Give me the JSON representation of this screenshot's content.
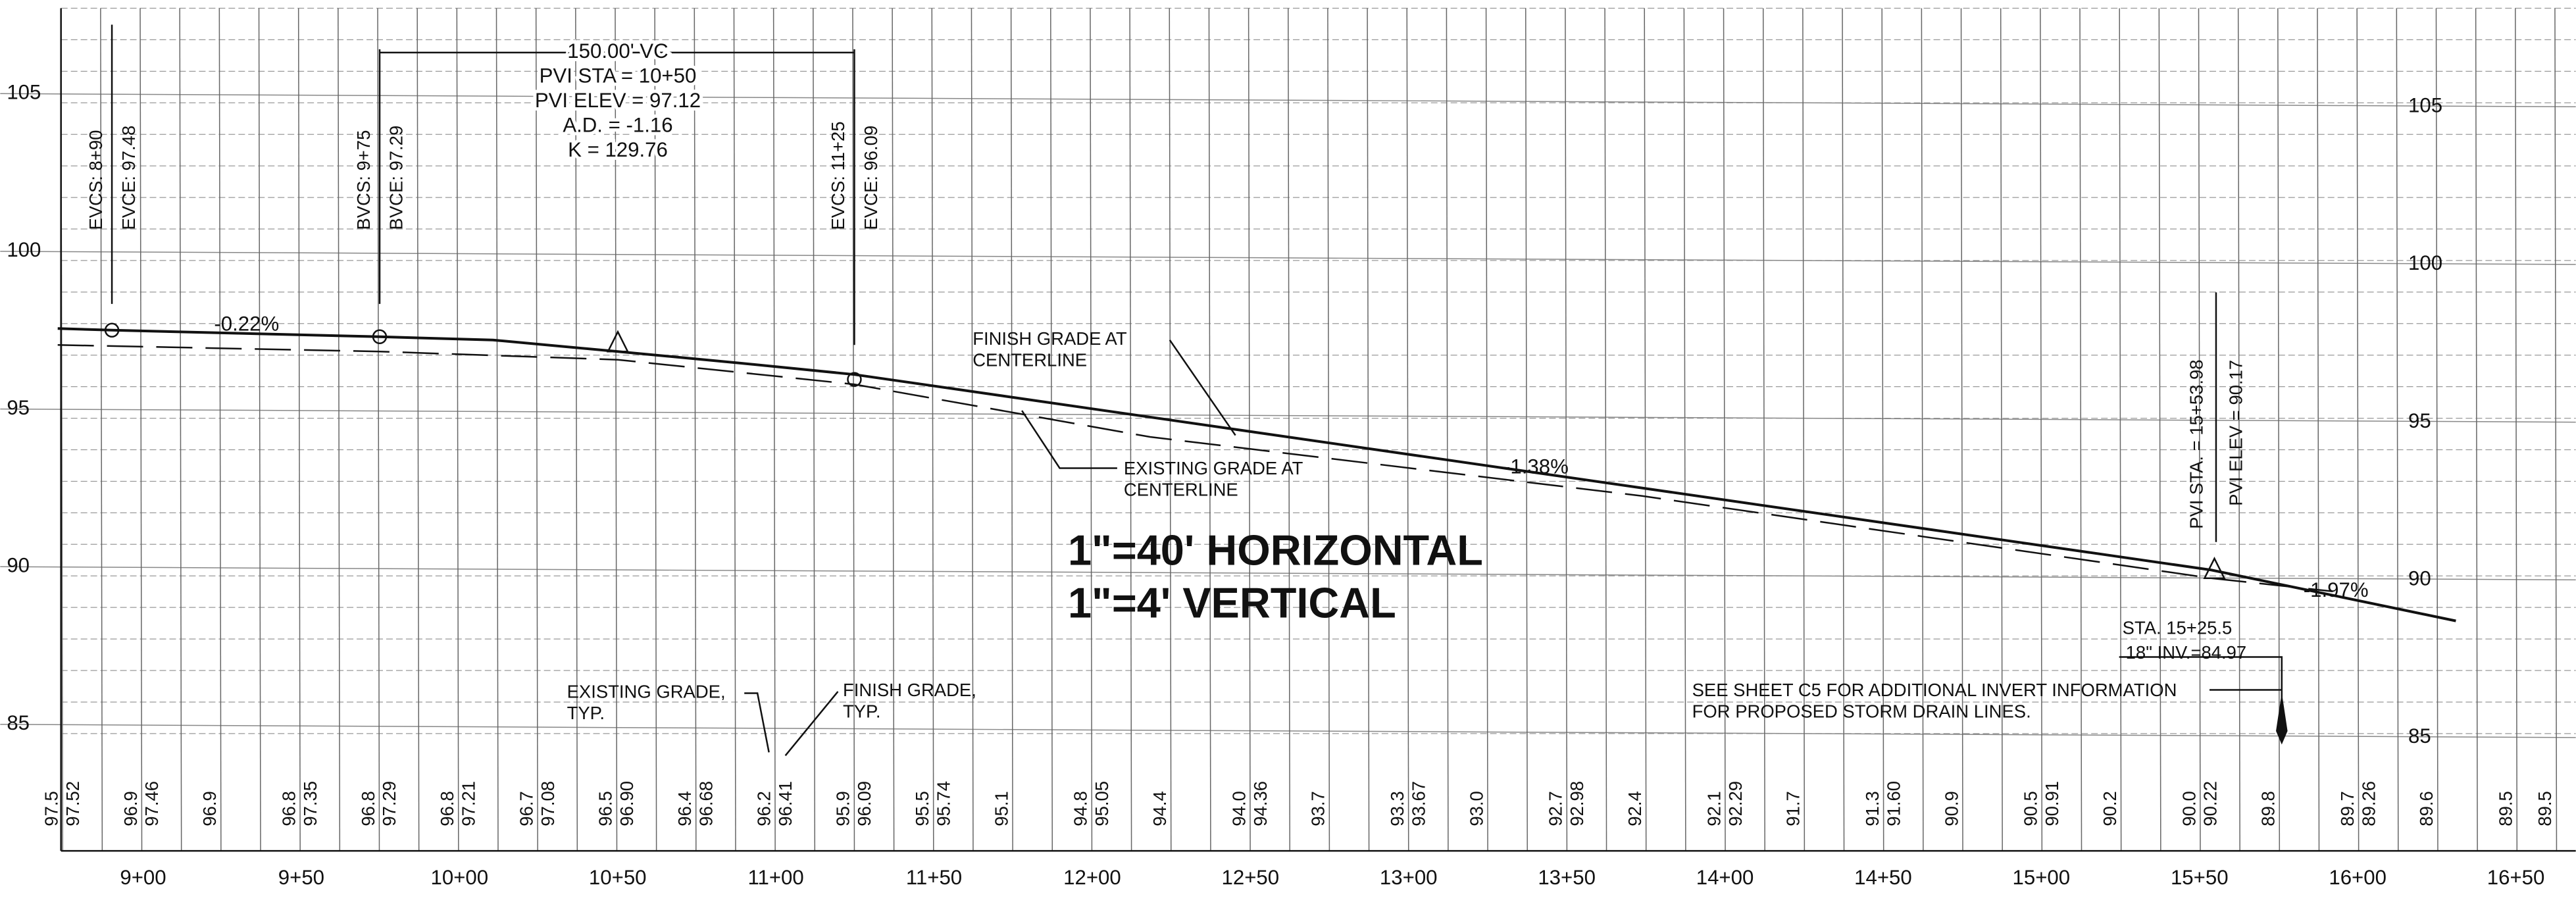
{
  "left_axis": [
    "105",
    "100",
    "95",
    "90",
    "85"
  ],
  "right_axis": [
    "105",
    "100",
    "95",
    "90",
    "85"
  ],
  "stations": [
    "9+00",
    "9+50",
    "10+00",
    "10+50",
    "11+00",
    "11+50",
    "12+00",
    "12+50",
    "13+00",
    "13+50",
    "14+00",
    "14+50",
    "15+00",
    "15+50",
    "16+00",
    "16+50"
  ],
  "elevations": [
    [
      "97.5",
      "97.52"
    ],
    [
      "96.9",
      "97.46"
    ],
    [
      "96.9"
    ],
    [
      "96.8",
      "97.35"
    ],
    [
      "96.8",
      "97.29"
    ],
    [
      "96.8",
      "97.21"
    ],
    [
      "96.7",
      "97.08"
    ],
    [
      "96.5",
      "96.90"
    ],
    [
      "96.4",
      "96.68"
    ],
    [
      "96.2",
      "96.41"
    ],
    [
      "95.9",
      "96.09"
    ],
    [
      "95.5",
      "95.74"
    ],
    [
      "95.1"
    ],
    [
      "94.8",
      "95.05"
    ],
    [
      "94.4"
    ],
    [
      "94.0",
      "94.36"
    ],
    [
      "93.7"
    ],
    [
      "93.3",
      "93.67"
    ],
    [
      "93.0"
    ],
    [
      "92.7",
      "92.98"
    ],
    [
      "92.4"
    ],
    [
      "92.1",
      "92.29"
    ],
    [
      "91.7"
    ],
    [
      "91.3",
      "91.60"
    ],
    [
      "90.9"
    ],
    [
      "90.5",
      "90.91"
    ],
    [
      "90.2"
    ],
    [
      "90.0",
      "90.22"
    ],
    [
      "89.8"
    ],
    [
      "89.7",
      "89.26"
    ],
    [
      "89.6"
    ],
    [
      "89.5"
    ],
    [
      "89.5"
    ]
  ],
  "curve_points": [
    [
      "EVCS: 8+90",
      "EVCE: 97.48"
    ],
    [
      "BVCS: 9+75",
      "BVCE: 97.29"
    ],
    [
      "EVCS: 11+25",
      "EVCE: 96.09"
    ]
  ],
  "vertical_curve": [
    "150.00' VC",
    "PVI STA = 10+50",
    "PVI ELEV = 97.12",
    "A.D. = -1.16",
    "K = 129.76"
  ],
  "grades": [
    "-0.22%",
    "-1.38%",
    "-1.97%"
  ],
  "finish_grade_note": [
    "FINISH GRADE AT",
    "CENTERLINE"
  ],
  "existing_grade_note": [
    "EXISTING GRADE AT",
    "CENTERLINE"
  ],
  "scale": [
    "1\"=40' HORIZONTAL",
    "1\"=4'  VERTICAL"
  ],
  "existing_typ": [
    "EXISTING GRADE,",
    "TYP."
  ],
  "finish_typ": [
    "FINISH GRADE,",
    "TYP."
  ],
  "structure": [
    "STA. 15+25.5",
    "18\" INV.=84.97"
  ],
  "invert_note": [
    "SEE SHEET C5 FOR ADDITIONAL INVERT INFORMATION",
    "FOR PROPOSED STORM DRAIN LINES."
  ],
  "pvi2": [
    "PVI STA. = 15+53.98",
    "PVI ELEV = 90.17"
  ]
}
